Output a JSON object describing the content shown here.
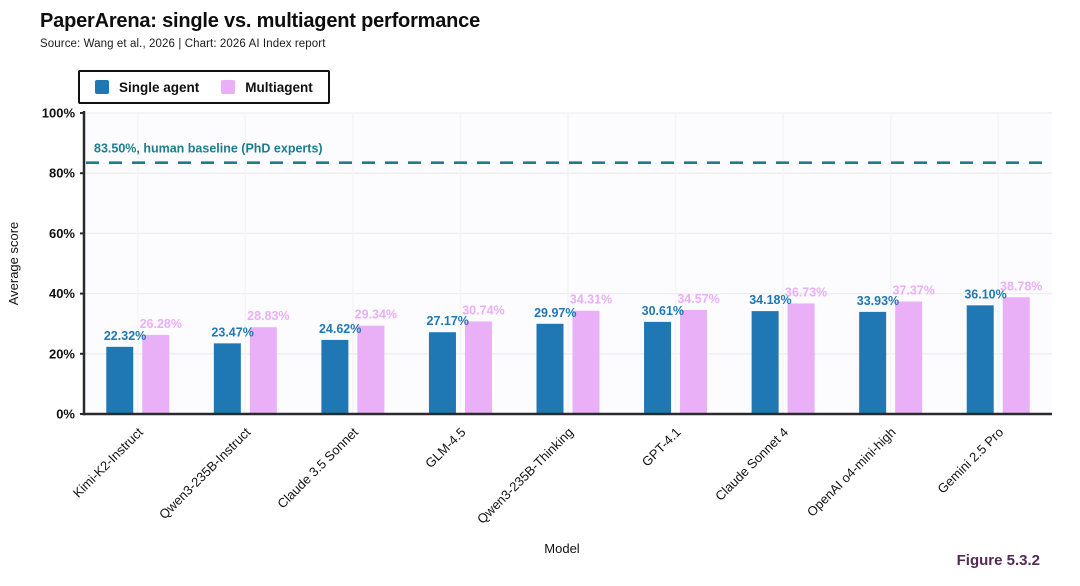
{
  "header": {
    "title": "PaperArena: single vs. multiagent performance",
    "subtitle": "Source: Wang et al., 2026 | Chart: 2026 AI Index report"
  },
  "figure_label": "Figure 5.3.2",
  "colors": {
    "figure_label": "#512b52",
    "axis": "#2a2a2e",
    "grid_horizontal": "#ededf2",
    "grid_vertical": "#f3f3f8",
    "tick_text": "#111111",
    "plot_background": "#fcfcfe"
  },
  "chart_data": {
    "type": "bar",
    "title": "PaperArena: single vs. multiagent performance",
    "subtitle": "Source: Wang et al., 2026 | Chart: 2026 AI Index report",
    "categories": [
      "Kimi-K2-Instruct",
      "Qwen3-235B-Instruct",
      "Claude 3.5 Sonnet",
      "GLM-4.5",
      "Qwen3-235B-Thinking",
      "GPT-4.1",
      "Claude Sonnet 4",
      "OpenAI o4-mini-high",
      "Gemini 2.5 Pro"
    ],
    "series": [
      {
        "name": "Single agent",
        "color": "#1f77b4",
        "values": [
          22.32,
          23.47,
          24.62,
          27.17,
          29.97,
          30.61,
          34.18,
          33.93,
          36.1
        ]
      },
      {
        "name": "Multiagent",
        "color": "#e9aff7",
        "values": [
          26.28,
          28.83,
          29.34,
          30.74,
          34.31,
          34.57,
          36.73,
          37.37,
          38.78
        ]
      }
    ],
    "xlabel": "Model",
    "ylabel": "Average score",
    "ylim": [
      0,
      100
    ],
    "yticks": [
      0,
      20,
      40,
      60,
      80,
      100
    ],
    "ytick_suffix": "%",
    "value_label_format": "two-decimals-percent",
    "legend_position": "top-left",
    "grid": "light horizontal + vertical",
    "baseline": {
      "value": 83.5,
      "label": "83.50%, human baseline (PhD experts)",
      "color": "#1b7d8d",
      "style": "dashed"
    }
  }
}
